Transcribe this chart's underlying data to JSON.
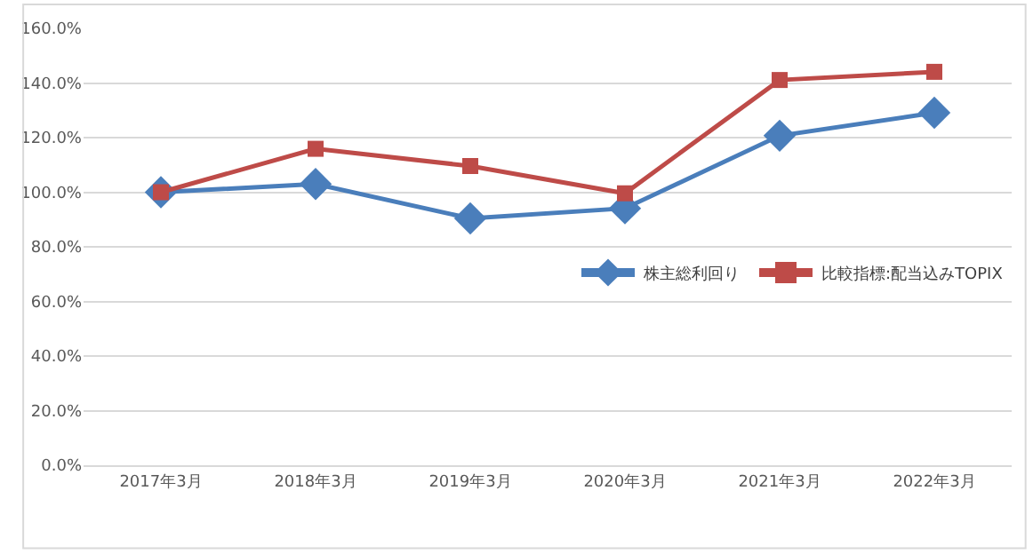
{
  "chart_data": {
    "type": "line",
    "categories": [
      "2017年3月",
      "2018年3月",
      "2019年3月",
      "2020年3月",
      "2021年3月",
      "2022年3月"
    ],
    "series": [
      {
        "name": "株主総利回り",
        "color": "#4a7ebb",
        "marker": "diamond",
        "values": [
          100.0,
          103.0,
          90.4,
          94.1,
          120.7,
          129.1
        ]
      },
      {
        "name": "比較指標:配当込みTOPIX",
        "color": "#be4b48",
        "marker": "square",
        "values": [
          100.0,
          115.9,
          109.6,
          99.6,
          141.1,
          144.1
        ]
      }
    ],
    "ylim": [
      0,
      160
    ],
    "yticks": [
      {
        "value": 0,
        "label": "0.0%"
      },
      {
        "value": 20,
        "label": "20.0%"
      },
      {
        "value": 40,
        "label": "40.0%"
      },
      {
        "value": 60,
        "label": "60.0%"
      },
      {
        "value": 80,
        "label": "80.0%"
      },
      {
        "value": 100,
        "label": "100.0%"
      },
      {
        "value": 120,
        "label": "120.0%"
      },
      {
        "value": 140,
        "label": "140.0%"
      },
      {
        "value": 160,
        "label": "160.0%"
      }
    ],
    "grid": "y",
    "legend": "right",
    "line_style": "solid"
  }
}
